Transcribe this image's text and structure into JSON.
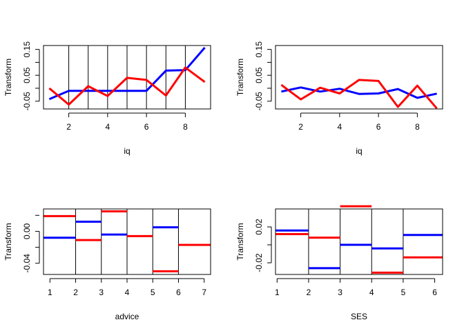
{
  "chart_data": [
    {
      "type": "line",
      "xlabel": "iq",
      "ylabel": "Transform",
      "xlim": [
        0.7,
        9.3
      ],
      "ylim": [
        -0.08,
        0.165
      ],
      "xticks": [
        2,
        4,
        6,
        8
      ],
      "yticks": [
        -0.05,
        0.05,
        0.15
      ],
      "ytick_labels": [
        "-0.05",
        "0.05",
        "0.15"
      ],
      "vlines": [
        2,
        3,
        4,
        5,
        6,
        7,
        8
      ],
      "grid": false,
      "series": [
        {
          "color": "#0000ff",
          "x": [
            1,
            2,
            3,
            4,
            5,
            6,
            7,
            8,
            9
          ],
          "y": [
            -0.042,
            -0.01,
            -0.01,
            -0.01,
            -0.01,
            -0.01,
            0.068,
            0.07,
            0.157
          ]
        },
        {
          "color": "#ff0000",
          "x": [
            1,
            2,
            3,
            4,
            5,
            6,
            7,
            8,
            9
          ],
          "y": [
            0.0,
            -0.063,
            0.008,
            -0.03,
            0.04,
            0.032,
            -0.028,
            0.08,
            0.024
          ]
        }
      ]
    },
    {
      "type": "line",
      "xlabel": "iq",
      "ylabel": "Transform",
      "xlim": [
        0.7,
        9.3
      ],
      "ylim": [
        -0.08,
        0.165
      ],
      "xticks": [
        2,
        4,
        6,
        8
      ],
      "yticks": [
        -0.05,
        0.05,
        0.15
      ],
      "ytick_labels": [
        "-0.05",
        "0.05",
        "0.15"
      ],
      "vlines": [],
      "grid": false,
      "series": [
        {
          "color": "#0000ff",
          "x": [
            1,
            2,
            3,
            4,
            5,
            6,
            7,
            8,
            9
          ],
          "y": [
            -0.013,
            0.003,
            -0.013,
            -0.002,
            -0.022,
            -0.02,
            -0.003,
            -0.037,
            -0.021
          ]
        },
        {
          "color": "#ff0000",
          "x": [
            1,
            2,
            3,
            4,
            5,
            6,
            7,
            8,
            9
          ],
          "y": [
            0.013,
            -0.043,
            0.002,
            -0.02,
            0.032,
            0.028,
            -0.072,
            0.01,
            -0.078
          ]
        }
      ]
    },
    {
      "type": "step",
      "xlabel": "advice",
      "ylabel": "Transform",
      "xlim": [
        0.75,
        7.25
      ],
      "ylim": [
        -0.054,
        0.028
      ],
      "xticks": [
        1,
        2,
        3,
        4,
        5,
        6,
        7
      ],
      "yticks": [
        -0.04,
        0.0
      ],
      "ytick_labels": [
        "-0.04",
        "0.00"
      ],
      "vlines": [
        2,
        3,
        4,
        5,
        6
      ],
      "grid": false,
      "series": [
        {
          "color": "#0000ff",
          "segments": [
            [
              0.75,
              2,
              -0.008
            ],
            [
              2,
              3,
              0.012
            ],
            [
              3,
              4,
              -0.004
            ],
            [
              5,
              6,
              0.005
            ]
          ]
        },
        {
          "color": "#ff0000",
          "segments": [
            [
              0.75,
              2,
              0.019
            ],
            [
              2,
              3,
              -0.011
            ],
            [
              3,
              4,
              0.025
            ],
            [
              4,
              5,
              -0.006
            ],
            [
              5,
              6,
              -0.05
            ],
            [
              6,
              7.25,
              -0.017
            ]
          ]
        }
      ]
    },
    {
      "type": "step",
      "xlabel": "SES",
      "ylabel": "Transform",
      "xlim": [
        0.95,
        6.25
      ],
      "ylim": [
        -0.033,
        0.04
      ],
      "xticks": [
        1,
        2,
        3,
        4,
        5,
        6
      ],
      "yticks": [
        -0.02,
        0.02
      ],
      "ytick_labels": [
        "-0.02",
        "0.02"
      ],
      "vlines": [
        2,
        3,
        4,
        5
      ],
      "grid": false,
      "series": [
        {
          "color": "#0000ff",
          "segments": [
            [
              0.95,
              2,
              0.016
            ],
            [
              2,
              3,
              -0.026
            ],
            [
              3,
              4,
              0.0
            ],
            [
              4,
              5,
              -0.004
            ],
            [
              5,
              6.25,
              0.011
            ]
          ]
        },
        {
          "color": "#ff0000",
          "segments": [
            [
              0.95,
              2,
              0.012
            ],
            [
              2,
              3,
              0.008
            ],
            [
              3,
              4,
              0.043
            ],
            [
              4,
              5,
              -0.031
            ],
            [
              5,
              6.25,
              -0.014
            ]
          ]
        }
      ]
    }
  ]
}
